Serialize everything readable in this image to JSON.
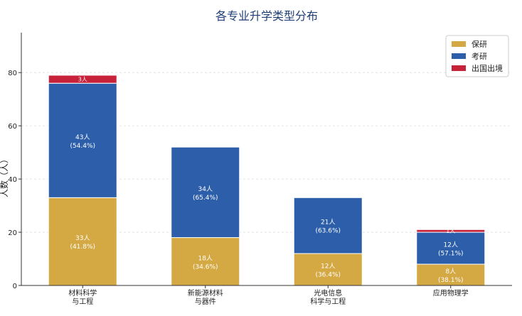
{
  "chart_data": {
    "type": "bar",
    "stacked": true,
    "title": "各专业升学类型分布",
    "ylabel": "人数（人）",
    "xlabel": "",
    "ylim": [
      0,
      95
    ],
    "yticks": [
      0,
      20,
      40,
      60,
      80
    ],
    "grid": true,
    "legend_position": "top-right",
    "categories": [
      [
        "材料科学",
        "与工程"
      ],
      [
        "新能源材料",
        "与器件"
      ],
      [
        "光电信息",
        "科学与工程"
      ],
      [
        "应用物理学"
      ]
    ],
    "series": [
      {
        "name": "保研",
        "color": "#D4A843",
        "values": [
          33,
          18,
          12,
          8
        ],
        "labels": [
          "33人",
          "18人",
          "12人",
          "8人"
        ],
        "pct_labels": [
          "(41.8%)",
          "(34.6%)",
          "(36.4%)",
          "(38.1%)"
        ]
      },
      {
        "name": "考研",
        "color": "#2C5EAA",
        "values": [
          43,
          34,
          21,
          12
        ],
        "labels": [
          "43人",
          "34人",
          "21人",
          "12人"
        ],
        "pct_labels": [
          "(54.4%)",
          "(65.4%)",
          "(63.6%)",
          "(57.1%)"
        ]
      },
      {
        "name": "出国出境",
        "color": "#C8213A",
        "values": [
          3,
          0,
          0,
          1
        ],
        "labels": [
          "3人",
          "",
          "",
          "1人"
        ],
        "pct_labels": [
          "",
          "",
          "",
          ""
        ]
      }
    ]
  }
}
